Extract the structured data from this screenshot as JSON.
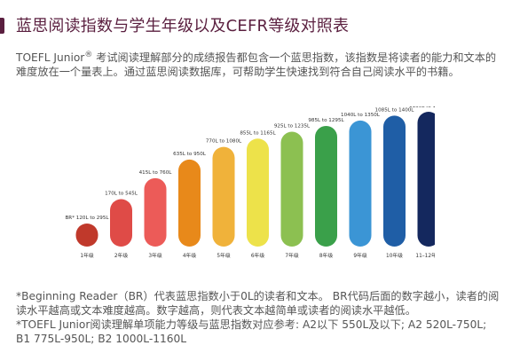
{
  "page": {
    "title": "蓝思阅读指数与学生年级以及CEFR等级对照表",
    "intro_brand": "TOEFL Junior",
    "intro_mark": "®",
    "intro_text": " 考试阅读理解部分的成绩报告都包含一个蓝思指数，该指数是将读者的能力和文本的难度放在一个量表上。通过蓝思阅读数据库，可帮助学生快速找到符合自己阅读水平的书籍。",
    "note1": "*Beginning Reader（BR）代表蓝思指数小于0L的读者和文本。 BR代码后面的数字越小，读者的阅读水平越高或文本难度越高。数字越高，则代表文本越简单或读者的阅读水平越低。",
    "note2": "*TOEFL Junior阅读理解单项能力等级与蓝思指数对应参考: A2以下 550L及以下; A2 520L-750L; B1 775L-950L; B2 1000L-1160L"
  },
  "chart_data": {
    "type": "bar",
    "categories": [
      "1年级",
      "2年级",
      "3年级",
      "4年级",
      "5年级",
      "6年级",
      "7年级",
      "8年级",
      "9年级",
      "10年级",
      "11–12年级"
    ],
    "range_labels": [
      "BR* 120L to 295L",
      "170L to 545L",
      "415L to 760L",
      "635L to 950L",
      "770L to 1080L",
      "855L to 1165L",
      "925L to 1235L",
      "985L to 1295L",
      "1040L to 1350L",
      "1085L to 1400L",
      "1130L to 1440L"
    ],
    "series": [
      {
        "low": [
          -120,
          170,
          415,
          635,
          770,
          855,
          925,
          985,
          1040,
          1085,
          1130
        ],
        "high": [
          295,
          545,
          760,
          950,
          1080,
          1165,
          1235,
          1295,
          1350,
          1400,
          1440
        ]
      }
    ],
    "colors": [
      "#c0392b",
      "#df4b47",
      "#ec5b58",
      "#e8891a",
      "#f0b23a",
      "#ede24a",
      "#8cc051",
      "#3aa04a",
      "#3b95d5",
      "#1f5ea6",
      "#14285e"
    ]
  }
}
